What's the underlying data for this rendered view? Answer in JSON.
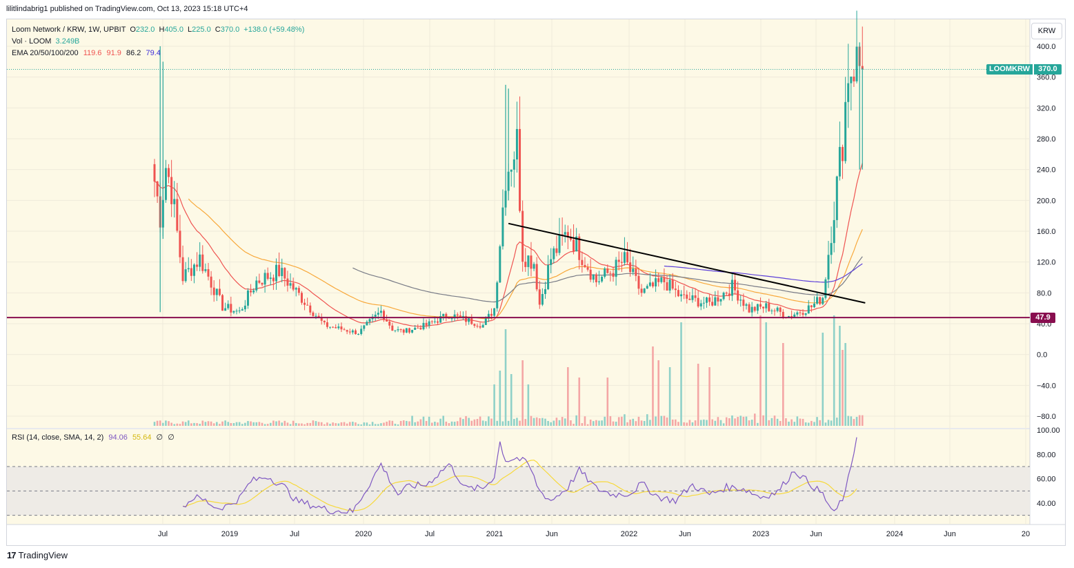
{
  "publisher": "lilitlindabrig1 published on TradingView.com, Oct 13, 2023 15:18 UTC+4",
  "footer": {
    "logo": "17",
    "text": "TradingView"
  },
  "currency_button": "KRW",
  "legend": {
    "symbol": "Loom Network / KRW, 1W, UPBIT",
    "o_label": "O",
    "o_value": "232.0",
    "h_label": "H",
    "h_value": "405.0",
    "l_label": "L",
    "l_value": "225.0",
    "c_label": "C",
    "c_value": "370.0",
    "change": "+138.0 (+59.48%)",
    "vol_label": "Vol · LOOM",
    "vol_value": "3.249B",
    "ema_label": "EMA 20/50/100/200",
    "ema20": "119.6",
    "ema50": "91.9",
    "ema100": "86.2",
    "ema200": "79.4",
    "rsi_label": "RSI (14, close, SMA, 14, 2)",
    "rsi_value": "94.06",
    "rsi_ma": "55.64",
    "rsi_extra1": "∅",
    "rsi_extra2": "∅"
  },
  "badges": {
    "ticker": "LOOMKRW",
    "last_price": "370.0",
    "support": "47.9"
  },
  "colors": {
    "bg": "#fdf9e6",
    "up": "#26a69a",
    "down": "#ef5350",
    "support": "#880e4f",
    "ema20": "#ef5350",
    "ema50": "#f8a83a",
    "ema100": "#787b86",
    "ema200": "#5b3fd9",
    "rsi": "#7e57c2",
    "rsi_ma": "#f7d93a",
    "trendline": "#000000"
  },
  "chart_data": [
    {
      "type": "candlestick",
      "title": "Loom Network / KRW, 1W, UPBIT",
      "y_ticks": [
        "400.0",
        "360.0",
        "320.0",
        "280.0",
        "240.0",
        "200.0",
        "160.0",
        "120.0",
        "80.0",
        "40.0",
        "0.0",
        "−40.0",
        "−80.0"
      ],
      "x_ticks": [
        "Jul",
        "2019",
        "Jul",
        "2020",
        "Jul",
        "2021",
        "Jun",
        "2022",
        "Jun",
        "2023",
        "Jun",
        "2024",
        "Jun",
        "20"
      ],
      "ylim": [
        -90,
        415
      ],
      "price_path_anchors": {
        "weeks": [
          0,
          2,
          4,
          6,
          10,
          16,
          24,
          30,
          36,
          44,
          60,
          72,
          80,
          84,
          88,
          96,
          104,
          116,
          120,
          124,
          128,
          130,
          134,
          136,
          140,
          146,
          150,
          156,
          162,
          166,
          172,
          180,
          186,
          196,
          204,
          210,
          216,
          224,
          228,
          232,
          236,
          240,
          243,
          245,
          248,
          250
        ],
        "close": [
          225,
          180,
          245,
          215,
          100,
          125,
          62,
          55,
          95,
          108,
          38,
          28,
          56,
          33,
          30,
          38,
          52,
          38,
          60,
          235,
          275,
          130,
          120,
          65,
          125,
          160,
          135,
          95,
          110,
          122,
          80,
          95,
          74,
          66,
          88,
          58,
          62,
          50,
          56,
          62,
          75,
          190,
          280,
          370,
          380,
          370
        ]
      },
      "support_level": 47.9,
      "last_close": 370.0,
      "trendline": {
        "from": {
          "week": 125,
          "price": 170
        },
        "to": {
          "week": 251,
          "price": 67
        }
      },
      "ema": {
        "20": 119.6,
        "50": 91.9,
        "100": 86.2,
        "200": 79.4
      }
    },
    {
      "type": "line",
      "title": "RSI (14, close, SMA, 14, 2)",
      "y_ticks": [
        "100.00",
        "80.00",
        "60.00",
        "40.00"
      ],
      "ylim": [
        20,
        100
      ],
      "bands": {
        "upper": 70,
        "middle": 50,
        "lower": 30
      },
      "series": [
        {
          "name": "RSI",
          "x_weeks": [
            10,
            14,
            18,
            22,
            26,
            30,
            34,
            40,
            46,
            50,
            56,
            62,
            70,
            76,
            80,
            86,
            90,
            96,
            104,
            110,
            116,
            120,
            122,
            124,
            128,
            132,
            136,
            140,
            146,
            150,
            156,
            162,
            168,
            172,
            178,
            184,
            190,
            196,
            202,
            208,
            214,
            220,
            226,
            232,
            236,
            240,
            242,
            244,
            248
          ],
          "values": [
            37,
            45,
            42,
            36,
            38,
            44,
            58,
            62,
            53,
            42,
            38,
            34,
            33,
            56,
            72,
            47,
            54,
            55,
            72,
            52,
            52,
            62,
            90,
            75,
            77,
            72,
            50,
            42,
            53,
            67,
            52,
            47,
            48,
            56,
            45,
            42,
            55,
            47,
            53,
            52,
            45,
            49,
            67,
            55,
            47,
            31,
            40,
            48,
            94
          ]
        },
        {
          "name": "RSI-based MA",
          "values_note": "smoothed",
          "last": 55.64
        }
      ]
    }
  ]
}
